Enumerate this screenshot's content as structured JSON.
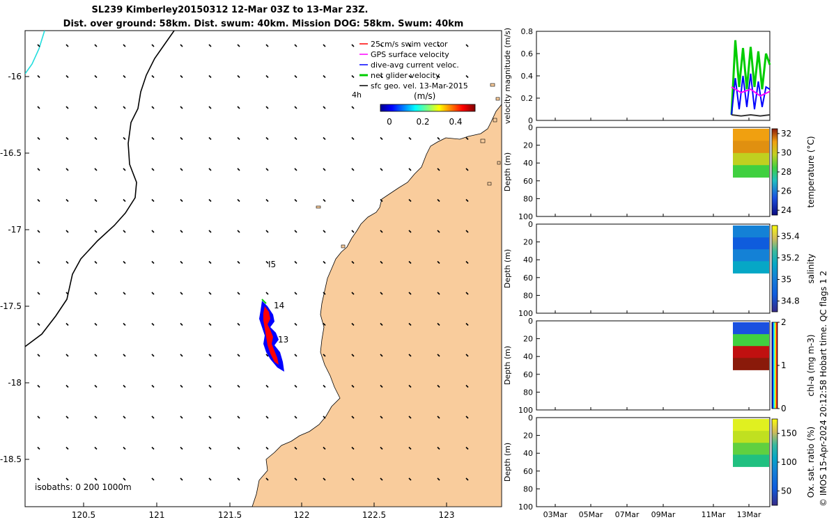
{
  "title": {
    "line1": "SL239 Kimberley20150312 12-Mar 03Z to 13-Mar 23Z.",
    "line2": "Dist. over ground: 58km. Dist. swum: 40km. Mission DOG: 58km. Swum: 40km"
  },
  "legend": {
    "items": [
      {
        "label": "25cm/s swim vector",
        "color": "#ff0000"
      },
      {
        "label": "GPS surface velocity",
        "color": "#ff00ff"
      },
      {
        "label": "dive-avg current veloc.",
        "color": "#0000ff"
      },
      {
        "label": "net glider velocity",
        "color": "#00cc00"
      },
      {
        "label": "sfc geo. vel. 13-Mar-2015",
        "color": "#000000"
      }
    ],
    "time_label": "4h"
  },
  "colorbar_map": {
    "unit": "(m/s)",
    "ticks": [
      "0",
      "0.2",
      "0.4"
    ]
  },
  "map": {
    "lon_ticks": [
      "120.5",
      "121",
      "121.5",
      "122",
      "122.5",
      "123"
    ],
    "lat_ticks": [
      "-16",
      "-16.5",
      "-17",
      "-17.5",
      "-18",
      "-18.5"
    ],
    "isobaths": "isobaths: 0   200  1000m",
    "waypoints": [
      "I5",
      "14",
      "13"
    ],
    "land_color": "#f9cc9c"
  },
  "chart_data": [
    {
      "type": "line",
      "title": "",
      "ylabel": "velocity magnitude (m/s)",
      "ylim": [
        0,
        0.8
      ],
      "yticks": [
        "0",
        "0.2",
        "0.4",
        "0.6",
        "0.8"
      ],
      "x_date_ticks": [
        "03Mar",
        "05Mar",
        "07Mar",
        "09Mar",
        "11Mar",
        "13Mar"
      ],
      "series": [
        {
          "name": "net glider velocity",
          "color": "#00cc00",
          "values": [
            0.05,
            0.72,
            0.3,
            0.65,
            0.28,
            0.66,
            0.3,
            0.62,
            0.28,
            0.6,
            0.5
          ]
        },
        {
          "name": "dive-avg current veloc.",
          "color": "#0000ff",
          "values": [
            0.05,
            0.38,
            0.1,
            0.4,
            0.12,
            0.42,
            0.1,
            0.35,
            0.12,
            0.3,
            0.28
          ]
        },
        {
          "name": "GPS surface velocity",
          "color": "#ff00ff",
          "values": [
            0.3,
            0.25,
            0.28,
            0.22,
            0.26
          ]
        },
        {
          "name": "sfc geo. vel.",
          "color": "#333333",
          "values": [
            0.05,
            0.04,
            0.05,
            0.04,
            0.05
          ]
        }
      ]
    },
    {
      "type": "heatmap",
      "ylabel": "Depth (m)",
      "clabel": "temperature (°C)",
      "yticks": [
        "0",
        "20",
        "40",
        "60",
        "80",
        "100"
      ],
      "cticks": [
        "32",
        "30",
        "28",
        "26",
        "24"
      ],
      "crange": [
        23.5,
        32.5
      ]
    },
    {
      "type": "heatmap",
      "ylabel": "Depth (m)",
      "clabel": "salinity",
      "yticks": [
        "0",
        "20",
        "40",
        "60",
        "80",
        "100"
      ],
      "cticks": [
        "35.4",
        "35.2",
        "35",
        "34.8"
      ],
      "crange": [
        34.7,
        35.5
      ]
    },
    {
      "type": "heatmap",
      "ylabel": "Depth (m)",
      "clabel": "chl-a (mg m-3)",
      "yticks": [
        "0",
        "20",
        "40",
        "60",
        "80",
        "100"
      ],
      "cticks": [
        "2",
        "1",
        "0"
      ],
      "crange": [
        0,
        2
      ]
    },
    {
      "type": "heatmap",
      "ylabel": "Depth (m)",
      "clabel": "Ox. sat. ratio (%)",
      "yticks": [
        "0",
        "20",
        "40",
        "60",
        "80",
        "100"
      ],
      "cticks": [
        "150",
        "100",
        "50"
      ],
      "crange": [
        25,
        175
      ],
      "xticks": [
        "03Mar",
        "05Mar",
        "07Mar",
        "09Mar",
        "11Mar",
        "13Mar"
      ]
    }
  ],
  "footer": {
    "credit": "© IMOS 15-Apr-2024 20:12:58 Hobart time. QC flags 1  2"
  }
}
